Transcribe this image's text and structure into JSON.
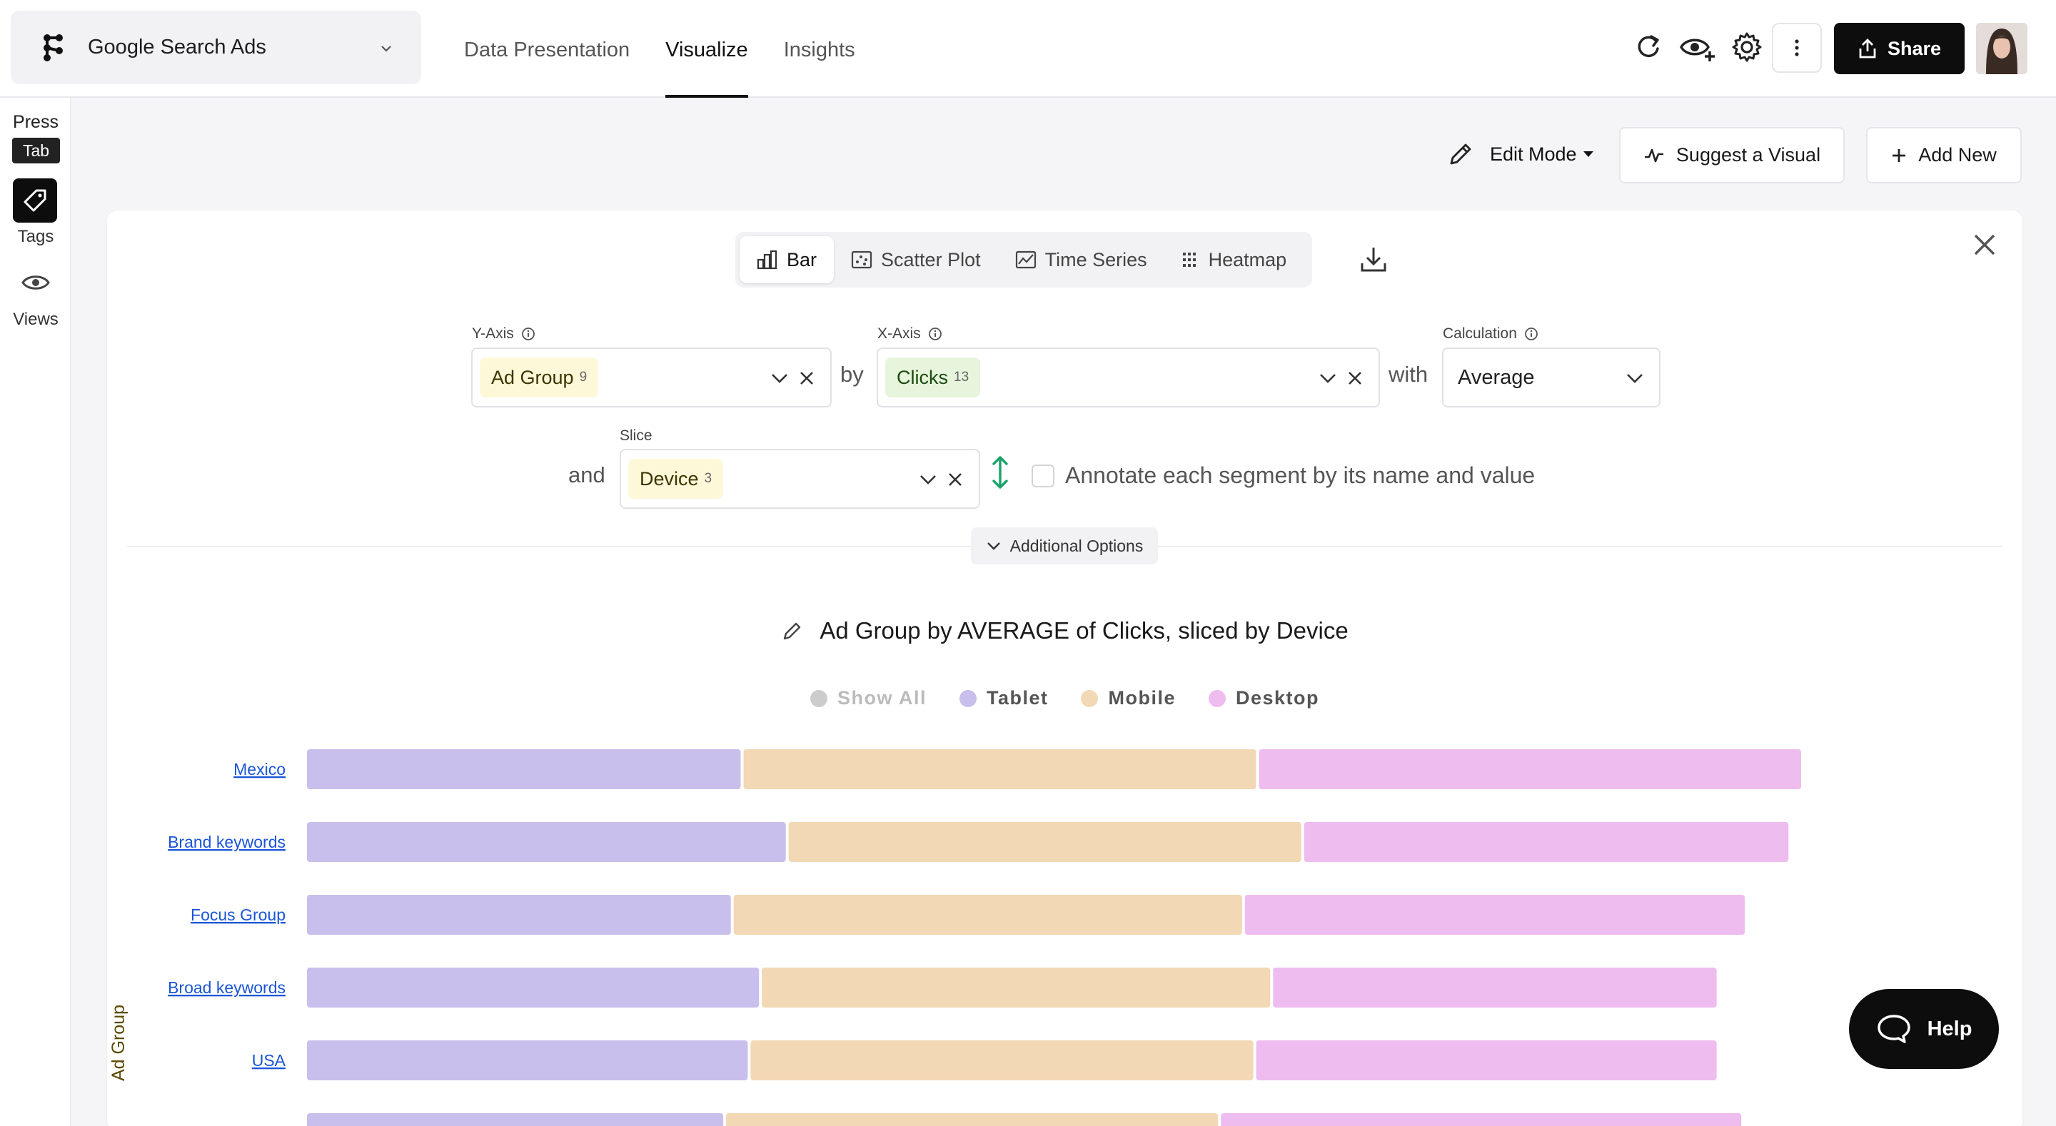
{
  "header": {
    "project_name": "Google Search Ads",
    "tabs": [
      "Data Presentation",
      "Visualize",
      "Insights"
    ],
    "active_tab": "Visualize",
    "share_label": "Share"
  },
  "rail": {
    "press_label": "Press",
    "tab_key": "Tab",
    "tags_label": "Tags",
    "views_label": "Views"
  },
  "toolbar": {
    "edit_mode_label": "Edit Mode",
    "suggest_label": "Suggest a Visual",
    "add_new_label": "Add New"
  },
  "chart_types": [
    "Bar",
    "Scatter Plot",
    "Time Series",
    "Heatmap"
  ],
  "active_chart_type": "Bar",
  "config": {
    "y_axis": {
      "label": "Y-Axis",
      "value": "Ad Group",
      "count": "9"
    },
    "by": "by",
    "x_axis": {
      "label": "X-Axis",
      "value": "Clicks",
      "count": "13"
    },
    "with": "with",
    "calculation": {
      "label": "Calculation",
      "value": "Average"
    },
    "and": "and",
    "slice": {
      "label": "Slice",
      "value": "Device",
      "count": "3"
    },
    "annotate_label": "Annotate each segment by its name and value",
    "annotate_checked": false,
    "additional_options_label": "Additional Options"
  },
  "colors": {
    "tablet": "#c9bfec",
    "mobile": "#f2d8b4",
    "desktop": "#eebcef",
    "y_chip_bg": "#fdf8d8",
    "x_chip_bg": "#e7f5dd",
    "slice_chip_bg": "#fdf8d8",
    "swap_icon": "#1aa36b"
  },
  "chart_data": {
    "type": "bar",
    "orientation": "horizontal",
    "stacked": true,
    "title": "Ad Group by AVERAGE of Clicks, sliced by Device",
    "ylabel": "Ad Group",
    "legend": [
      "Show All",
      "Tablet",
      "Mobile",
      "Desktop"
    ],
    "legend_position": "top-center",
    "categories": [
      "Mexico",
      "Brand keywords",
      "Focus Group",
      "Broad keywords",
      "USA"
    ],
    "series": [
      {
        "name": "Tablet",
        "values": [
          310,
          342,
          303,
          323,
          315
        ]
      },
      {
        "name": "Mobile",
        "values": [
          366,
          366,
          363,
          363,
          359
        ]
      },
      {
        "name": "Desktop",
        "values": [
          387,
          346,
          357,
          317,
          329
        ]
      }
    ],
    "x_range": [
      0,
      1100
    ]
  },
  "help_label": "Help"
}
